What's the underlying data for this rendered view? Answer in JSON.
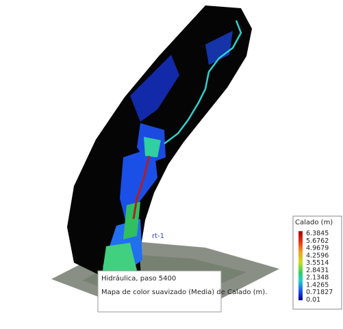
{
  "legend": {
    "title": "Calado (m)",
    "labels": [
      "6.3845",
      "5.6762",
      "4.9679",
      "4.2596",
      "3.5514",
      "2.8431",
      "2.1348",
      "1.4265",
      "0.71827",
      "0.01"
    ]
  },
  "annotation": "rt-1",
  "caption": {
    "lines": [
      "Hidráulica, paso 5400",
      "Mapa de color suavizado (Media) de Calado (m)."
    ]
  }
}
